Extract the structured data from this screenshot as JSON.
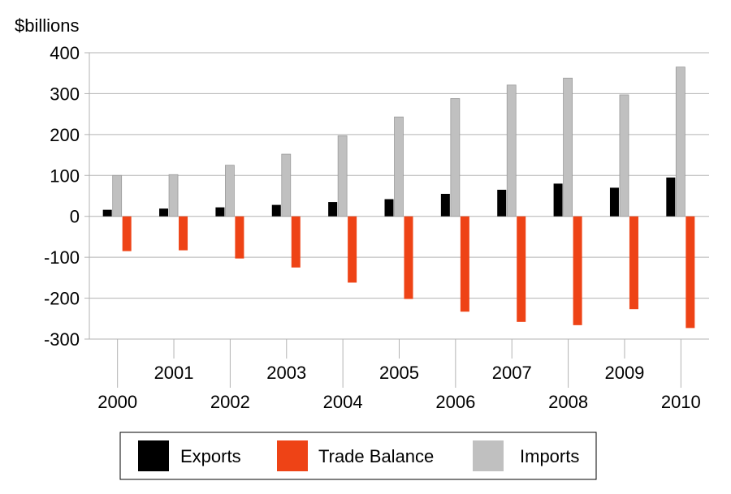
{
  "chart_data": {
    "type": "bar",
    "ylabel": "$billions",
    "ylim": [
      -300,
      400
    ],
    "yticks": [
      400,
      300,
      200,
      100,
      0,
      -100,
      -200,
      -300
    ],
    "ytick_labels": [
      "400",
      "300",
      "200",
      "100",
      "0",
      "-100",
      "-200",
      "-300"
    ],
    "categories": [
      "2000",
      "2001",
      "2002",
      "2003",
      "2004",
      "2005",
      "2006",
      "2007",
      "2008",
      "2009",
      "2010"
    ],
    "grid": true,
    "legend_position": "bottom",
    "series": [
      {
        "name": "Exports",
        "color": "#000000",
        "values": [
          16,
          19,
          22,
          28,
          35,
          42,
          55,
          65,
          80,
          70,
          95
        ]
      },
      {
        "name": "Trade Balance",
        "color": "#ee4316",
        "values": [
          -85,
          -83,
          -103,
          -125,
          -162,
          -202,
          -233,
          -258,
          -266,
          -227,
          -273
        ]
      },
      {
        "name": "Imports",
        "color": "#c0c0c0",
        "values": [
          100,
          102,
          125,
          152,
          197,
          243,
          288,
          321,
          338,
          297,
          365
        ]
      }
    ]
  }
}
